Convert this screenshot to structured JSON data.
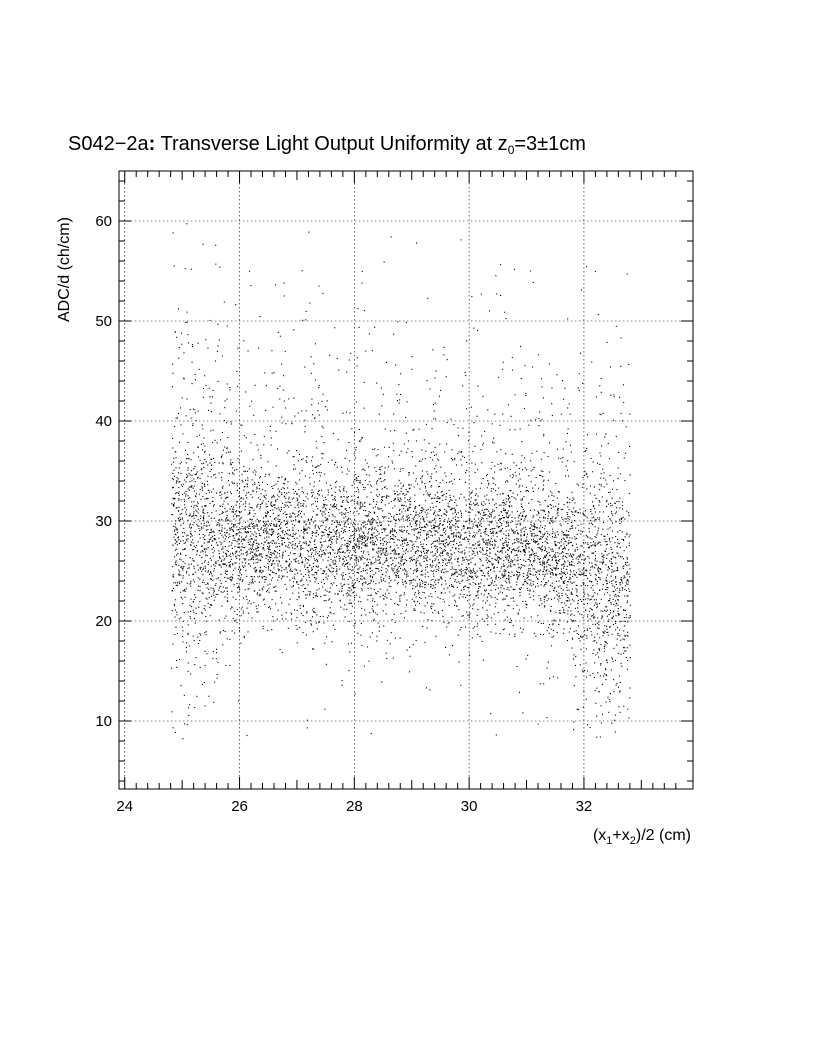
{
  "chart_data": {
    "type": "scatter",
    "title": {
      "prefix": "S042−2a",
      "colon": ":",
      "rest": " Transverse Light Output Uniformity at z",
      "sub": "0",
      "suffix": "=3±1cm"
    },
    "xlabel": {
      "p1": "(x",
      "s1": "1",
      "p2": "+x",
      "s2": "2",
      "p3": ")/2 (cm)"
    },
    "ylabel": "ADC/d (ch/cm)",
    "xlim": [
      23.9,
      33.9
    ],
    "ylim": [
      3.2,
      65.0
    ],
    "x_ticks": [
      {
        "value": 24,
        "label": "24"
      },
      {
        "value": 26,
        "label": "26"
      },
      {
        "value": 28,
        "label": "28"
      },
      {
        "value": 30,
        "label": "30"
      },
      {
        "value": 32,
        "label": "32"
      }
    ],
    "y_ticks": [
      {
        "value": 10,
        "label": "10"
      },
      {
        "value": 20,
        "label": "20"
      },
      {
        "value": 30,
        "label": "30"
      },
      {
        "value": 40,
        "label": "40"
      },
      {
        "value": 50,
        "label": "50"
      },
      {
        "value": 60,
        "label": "60"
      }
    ],
    "grid": true,
    "x_data_range": [
      24.8,
      32.8
    ],
    "points_approx_count": 7000,
    "marker_color": "#000000",
    "density_profile": [
      {
        "x": 25.0,
        "y_median": 28.5,
        "y_spread": 4.5
      },
      {
        "x": 26.0,
        "y_median": 28.0,
        "y_spread": 3.8
      },
      {
        "x": 27.0,
        "y_median": 27.5,
        "y_spread": 3.6
      },
      {
        "x": 28.0,
        "y_median": 27.5,
        "y_spread": 3.6
      },
      {
        "x": 29.0,
        "y_median": 27.5,
        "y_spread": 3.6
      },
      {
        "x": 30.0,
        "y_median": 27.5,
        "y_spread": 3.6
      },
      {
        "x": 31.0,
        "y_median": 27.0,
        "y_spread": 3.6
      },
      {
        "x": 31.6,
        "y_median": 26.0,
        "y_spread": 3.8
      },
      {
        "x": 32.0,
        "y_median": 24.0,
        "y_spread": 4.2
      },
      {
        "x": 32.6,
        "y_median": 23.0,
        "y_spread": 4.5
      }
    ]
  }
}
